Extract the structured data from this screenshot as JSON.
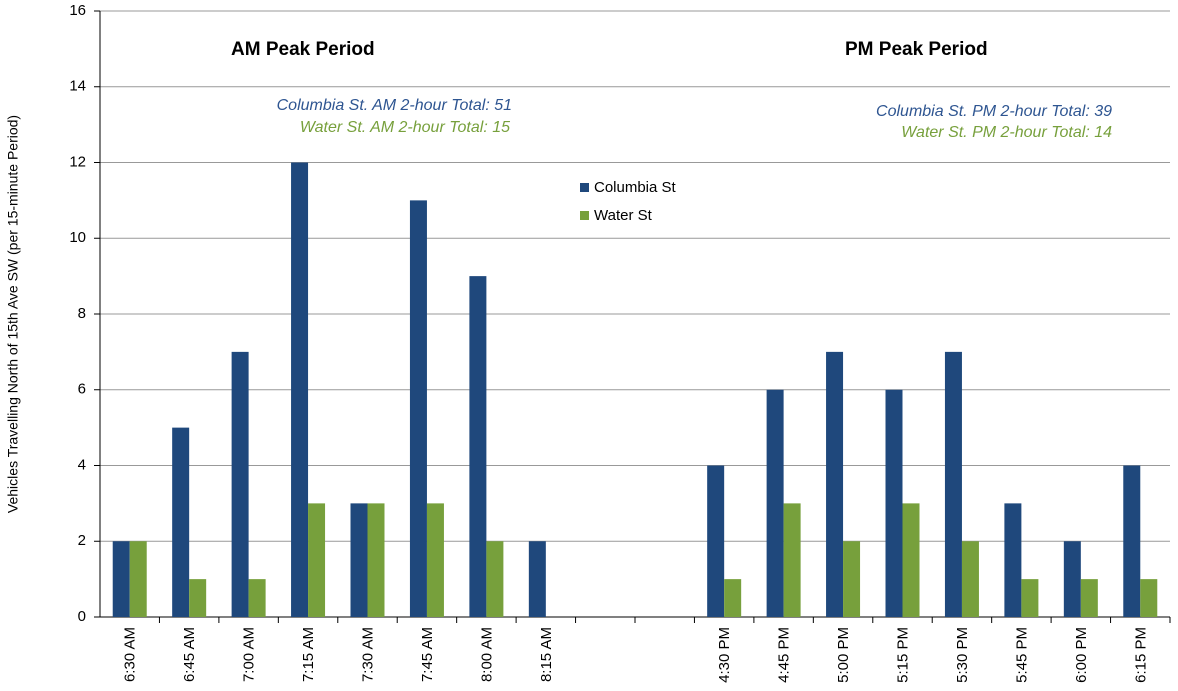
{
  "chart_data": {
    "type": "bar",
    "ylabel": "Vehicles Travelling North of 15th Ave SW (per 15-minute Period)",
    "categories": [
      "6:30 AM",
      "6:45 AM",
      "7:00 AM",
      "7:15 AM",
      "7:30 AM",
      "7:45 AM",
      "8:00 AM",
      "8:15 AM",
      null,
      null,
      "4:30 PM",
      "4:45 PM",
      "5:00 PM",
      "5:15 PM",
      "5:30 PM",
      "5:45 PM",
      "6:00 PM",
      "6:15 PM"
    ],
    "series": [
      {
        "name": "Columbia St",
        "color": "#1f487c",
        "values": [
          2,
          5,
          7,
          12,
          3,
          11,
          9,
          2,
          null,
          null,
          4,
          6,
          7,
          6,
          7,
          3,
          2,
          4
        ]
      },
      {
        "name": "Water St",
        "color": "#77a03c",
        "values": [
          2,
          1,
          1,
          3,
          3,
          3,
          2,
          0,
          null,
          null,
          1,
          3,
          2,
          3,
          2,
          1,
          1,
          1
        ]
      }
    ],
    "ylim": [
      0,
      16
    ],
    "yticks": [
      0,
      2,
      4,
      6,
      8,
      10,
      12,
      14,
      16
    ],
    "grid": true,
    "annotations": [
      {
        "text": "AM Peak Period",
        "style": "bold"
      },
      {
        "text": "PM Peak Period",
        "style": "bold"
      },
      {
        "text": "Columbia St. AM 2-hour Total: 51",
        "style": "italic",
        "color": "#2e5591"
      },
      {
        "text": "Water St. AM 2-hour Total: 15",
        "style": "italic",
        "color": "#77a03c"
      },
      {
        "text": "Columbia St. PM 2-hour Total: 39",
        "style": "italic",
        "color": "#2e5591"
      },
      {
        "text": "Water St. PM 2-hour Total: 14",
        "style": "italic",
        "color": "#77a03c"
      }
    ]
  }
}
